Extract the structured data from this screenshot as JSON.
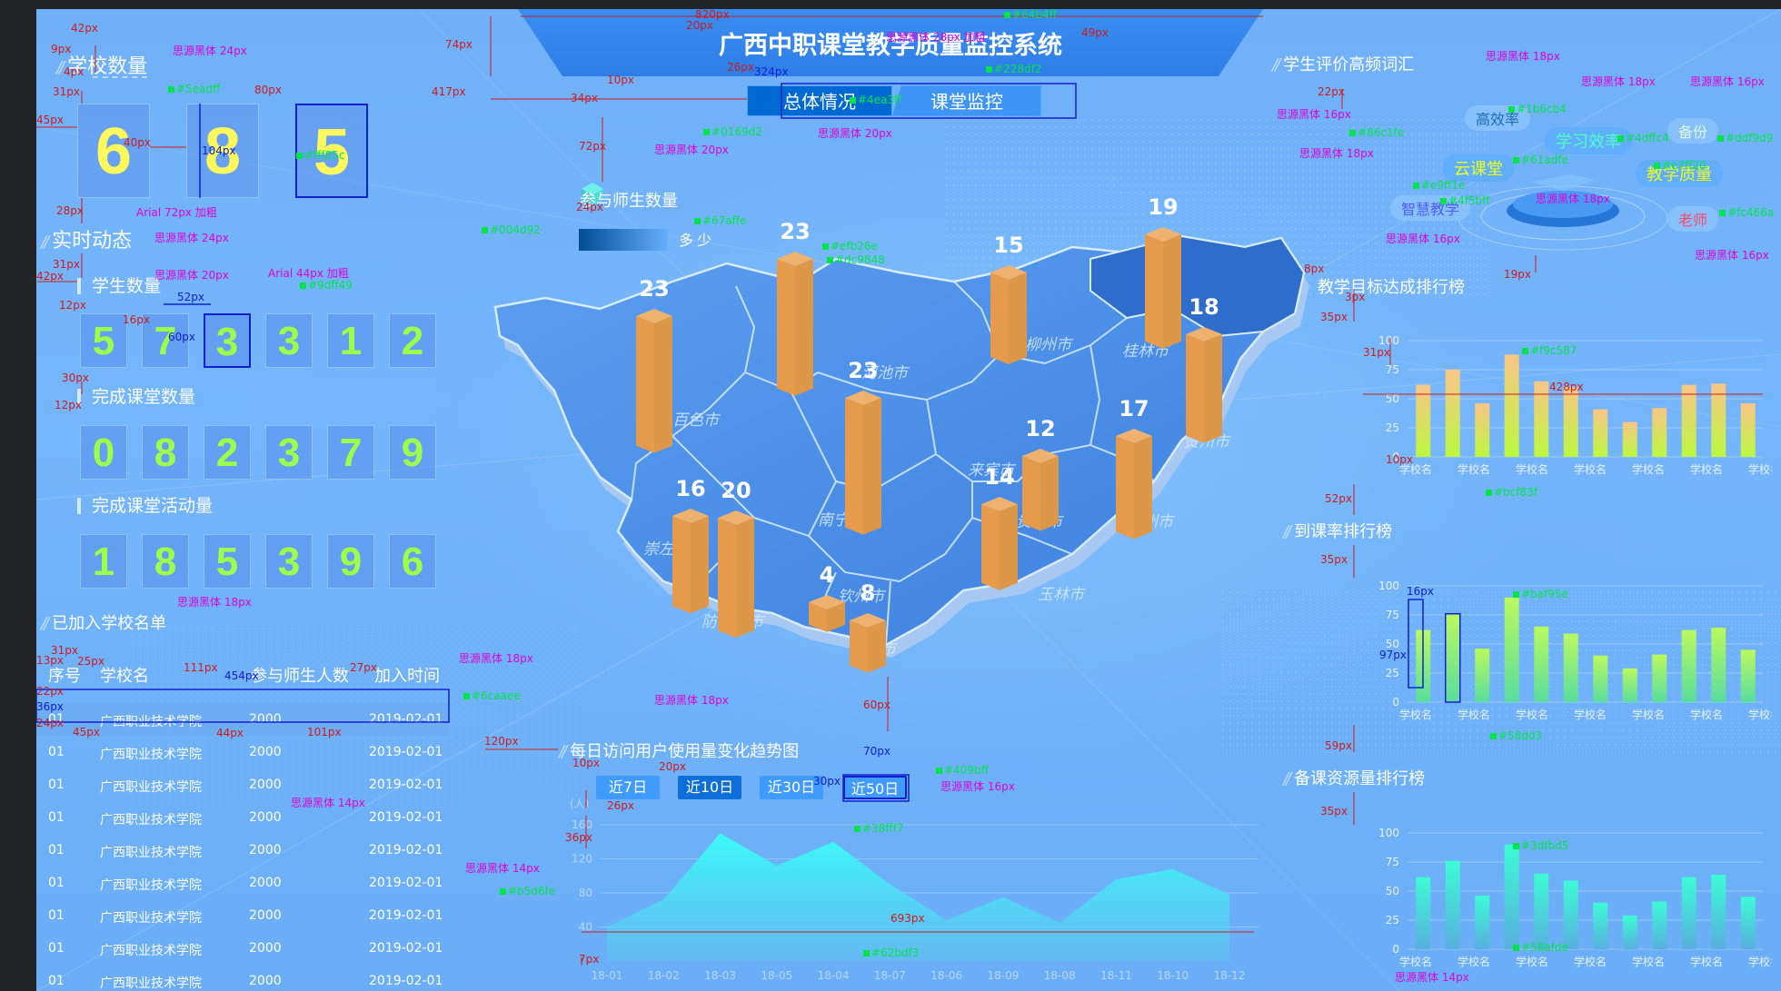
{
  "header": {
    "title": "广西中职课堂教学质量监控系统",
    "tabs": [
      "总体情况",
      "课堂监控"
    ]
  },
  "left": {
    "school_count_title": "学校数量",
    "school_count_digits": [
      "6",
      "8",
      "5"
    ],
    "realtime_title": "实时动态",
    "student_count_label": "学生数量",
    "student_digits": [
      "5",
      "7",
      "3",
      "3",
      "1",
      "2"
    ],
    "classes_label": "完成课堂数量",
    "classes_digits": [
      "0",
      "8",
      "2",
      "3",
      "7",
      "9"
    ],
    "activities_label": "完成课堂活动量",
    "activities_digits": [
      "1",
      "8",
      "5",
      "3",
      "9",
      "6"
    ],
    "school_list_title": "已加入学校名单",
    "table_headers": [
      "序号",
      "学校名",
      "参与师生人数",
      "加入时间"
    ],
    "table_rows": [
      [
        "01",
        "广西职业技术学院",
        "2000",
        "2019-02-01"
      ],
      [
        "01",
        "广西职业技术学院",
        "2000",
        "2019-02-01"
      ],
      [
        "01",
        "广西职业技术学院",
        "2000",
        "2019-02-01"
      ],
      [
        "01",
        "广西职业技术学院",
        "2000",
        "2019-02-01"
      ],
      [
        "01",
        "广西职业技术学院",
        "2000",
        "2019-02-01"
      ],
      [
        "01",
        "广西职业技术学院",
        "2000",
        "2019-02-01"
      ],
      [
        "01",
        "广西职业技术学院",
        "2000",
        "2019-02-01"
      ],
      [
        "01",
        "广西职业技术学院",
        "2000",
        "2019-02-01"
      ],
      [
        "01",
        "广西职业技术学院",
        "2000",
        "2019-02-01"
      ]
    ]
  },
  "map": {
    "legend_title": "参与师生数量",
    "legend_low": "多",
    "legend_high": "少",
    "cities": [
      "百色市",
      "河池市",
      "柳州市",
      "桂林市",
      "贺州市",
      "来宾市",
      "南宁市",
      "崇左市",
      "防城港市",
      "钦州市",
      "北海市",
      "玉林市",
      "贵港市",
      "梧州市"
    ],
    "bars": [
      {
        "value": "23"
      },
      {
        "value": "23"
      },
      {
        "value": "15"
      },
      {
        "value": "19"
      },
      {
        "value": "18"
      },
      {
        "value": "23"
      },
      {
        "value": "12"
      },
      {
        "value": "17"
      },
      {
        "value": "16"
      },
      {
        "value": "20"
      },
      {
        "value": "14"
      },
      {
        "value": "4"
      },
      {
        "value": "8"
      }
    ]
  },
  "trend": {
    "title": "每日访问用户使用量变化趋势图",
    "buttons": [
      "近7日",
      "近10日",
      "近30日",
      "近50日"
    ],
    "unit": "(人)"
  },
  "right": {
    "wordcloud_title": "学生评价高频词汇",
    "words": [
      "高效率",
      "学习效率",
      "备份",
      "云课堂",
      "教学质量",
      "智慧教学",
      "老师"
    ],
    "chart1_title": "教学目标达成排行榜",
    "chart2_title": "到课率排行榜",
    "chart3_title": "备课资源量排行榜"
  },
  "annotations": [
    {
      "t": "820px",
      "c": "red",
      "x": 725,
      "y": -2
    },
    {
      "t": "20px",
      "c": "red",
      "x": 715,
      "y": 12
    },
    {
      "t": "74px",
      "c": "red",
      "x": 450,
      "y": 33
    },
    {
      "t": "思源黑体 28px 加粗",
      "c": "mag",
      "x": 935,
      "y": 25
    },
    {
      "t": "#64b4ff",
      "c": "grn",
      "x": 1065,
      "y": -2
    },
    {
      "t": "49px",
      "c": "red",
      "x": 1150,
      "y": 20
    },
    {
      "t": "26px",
      "c": "red",
      "x": 760,
      "y": 58
    },
    {
      "t": "324px",
      "c": "blu",
      "x": 790,
      "y": 63
    },
    {
      "t": "#228df2",
      "c": "grn",
      "x": 1045,
      "y": 60
    },
    {
      "t": "10px",
      "c": "red",
      "x": 628,
      "y": 72
    },
    {
      "t": "417px",
      "c": "red",
      "x": 435,
      "y": 85
    },
    {
      "t": "34px",
      "c": "red",
      "x": 588,
      "y": 92
    },
    {
      "t": "#4ea3ff",
      "c": "grn",
      "x": 895,
      "y": 94
    },
    {
      "t": "72px",
      "c": "red",
      "x": 597,
      "y": 145
    },
    {
      "t": "#0169d2",
      "c": "grn",
      "x": 734,
      "y": 129
    },
    {
      "t": "思源黑体 20px",
      "c": "mag",
      "x": 860,
      "y": 131
    },
    {
      "t": "思源黑体 20px",
      "c": "mag",
      "x": 680,
      "y": 149
    },
    {
      "t": "42px",
      "c": "red",
      "x": 38,
      "y": 15
    },
    {
      "t": "9px",
      "c": "red",
      "x": 16,
      "y": 38
    },
    {
      "t": "思源黑体 24px",
      "c": "mag",
      "x": 150,
      "y": 40
    },
    {
      "t": "4px",
      "c": "red",
      "x": 30,
      "y": 63
    },
    {
      "t": "#5eadff",
      "c": "grn",
      "x": 145,
      "y": 82
    },
    {
      "t": "31px",
      "c": "red",
      "x": 18,
      "y": 85
    },
    {
      "t": "80px",
      "c": "red",
      "x": 240,
      "y": 83
    },
    {
      "t": "45px",
      "c": "red",
      "x": -4,
      "y": 116
    },
    {
      "t": "40px",
      "c": "red",
      "x": 96,
      "y": 141
    },
    {
      "t": "104px",
      "c": "blu",
      "x": 182,
      "y": 150
    },
    {
      "t": "#fff85c",
      "c": "grn",
      "x": 286,
      "y": 155
    },
    {
      "t": "28px",
      "c": "red",
      "x": 22,
      "y": 216
    },
    {
      "t": "Arial 72px 加粗",
      "c": "mag",
      "x": 110,
      "y": 218
    },
    {
      "t": "思源黑体 24px",
      "c": "mag",
      "x": 130,
      "y": 246
    },
    {
      "t": "31px",
      "c": "red",
      "x": 18,
      "y": 275
    },
    {
      "t": "42px",
      "c": "red",
      "x": -4,
      "y": 288
    },
    {
      "t": "思源黑体 20px",
      "c": "mag",
      "x": 130,
      "y": 287
    },
    {
      "t": "Arial 44px 加粗",
      "c": "mag",
      "x": 255,
      "y": 285
    },
    {
      "t": "#9dff49",
      "c": "grn",
      "x": 290,
      "y": 298
    },
    {
      "t": "52px",
      "c": "blu",
      "x": 155,
      "y": 311
    },
    {
      "t": "12px",
      "c": "red",
      "x": 25,
      "y": 320
    },
    {
      "t": "16px",
      "c": "red",
      "x": 95,
      "y": 336
    },
    {
      "t": "60px",
      "c": "blu",
      "x": 145,
      "y": 355
    },
    {
      "t": "30px",
      "c": "red",
      "x": 28,
      "y": 400
    },
    {
      "t": "12px",
      "c": "red",
      "x": 20,
      "y": 430
    },
    {
      "t": "思源黑体 18px",
      "c": "mag",
      "x": 155,
      "y": 647
    },
    {
      "t": "31px",
      "c": "red",
      "x": 16,
      "y": 700
    },
    {
      "t": "13px",
      "c": "red",
      "x": -7,
      "y": 711
    },
    {
      "t": "25px",
      "c": "red",
      "x": 45,
      "y": 712
    },
    {
      "t": "111px",
      "c": "red",
      "x": 162,
      "y": 719
    },
    {
      "t": "27px",
      "c": "red",
      "x": 345,
      "y": 719
    },
    {
      "t": "思源黑体 18px",
      "c": "mag",
      "x": 465,
      "y": 709
    },
    {
      "t": "454px",
      "c": "blu",
      "x": 207,
      "y": 728
    },
    {
      "t": "22px",
      "c": "red",
      "x": -12,
      "y": 745
    },
    {
      "t": "#6caaee",
      "c": "grn",
      "x": 470,
      "y": 750
    },
    {
      "t": "36px",
      "c": "blu",
      "x": -40,
      "y": 762
    },
    {
      "t": "24px",
      "c": "red",
      "x": -12,
      "y": 780
    },
    {
      "t": "45px",
      "c": "red",
      "x": 40,
      "y": 790
    },
    {
      "t": "44px",
      "c": "red",
      "x": 198,
      "y": 791
    },
    {
      "t": "101px",
      "c": "red",
      "x": 298,
      "y": 790
    },
    {
      "t": "120px",
      "c": "red",
      "x": 493,
      "y": 800
    },
    {
      "t": "思源黑体 14px",
      "c": "mag",
      "x": 280,
      "y": 868
    },
    {
      "t": "#004d92",
      "c": "grn",
      "x": 490,
      "y": 237
    },
    {
      "t": "24px",
      "c": "red",
      "x": 594,
      "y": 212
    },
    {
      "t": "#67affe",
      "c": "grn",
      "x": 724,
      "y": 227
    },
    {
      "t": "#efb26e",
      "c": "grn",
      "x": 865,
      "y": 255
    },
    {
      "t": "#dc9848",
      "c": "grn",
      "x": 870,
      "y": 270
    },
    {
      "t": "思源黑体 18px",
      "c": "mag",
      "x": 680,
      "y": 755
    },
    {
      "t": "60px",
      "c": "red",
      "x": 910,
      "y": 760
    },
    {
      "t": "10px",
      "c": "red",
      "x": 590,
      "y": 824
    },
    {
      "t": "20px",
      "c": "red",
      "x": 685,
      "y": 828
    },
    {
      "t": "70px",
      "c": "blu",
      "x": 910,
      "y": 811
    },
    {
      "t": "#409bff",
      "c": "grn",
      "x": 990,
      "y": 832
    },
    {
      "t": "30px",
      "c": "blu",
      "x": 855,
      "y": 844
    },
    {
      "t": "思源黑体 16px",
      "c": "mag",
      "x": 995,
      "y": 850
    },
    {
      "t": "26px",
      "c": "red",
      "x": 628,
      "y": 871
    },
    {
      "t": "36px",
      "c": "red",
      "x": 582,
      "y": 906
    },
    {
      "t": "#38fff7",
      "c": "grn",
      "x": 900,
      "y": 896
    },
    {
      "t": "思源黑体 14px",
      "c": "mag",
      "x": 472,
      "y": 940
    },
    {
      "t": "#b5d6fe",
      "c": "grn",
      "x": 510,
      "y": 965
    },
    {
      "t": "693px",
      "c": "red",
      "x": 940,
      "y": 995
    },
    {
      "t": "#62bdf3",
      "c": "grn",
      "x": 910,
      "y": 1033
    },
    {
      "t": "7px",
      "c": "red",
      "x": 597,
      "y": 1040
    },
    {
      "t": "思源黑体 18px",
      "c": "mag",
      "x": 1595,
      "y": 46
    },
    {
      "t": "22px",
      "c": "red",
      "x": 1410,
      "y": 85
    },
    {
      "t": "思源黑体 18px",
      "c": "mag",
      "x": 1700,
      "y": 74
    },
    {
      "t": "思源黑体 16px",
      "c": "mag",
      "x": 1820,
      "y": 74
    },
    {
      "t": "思源黑体 16px",
      "c": "mag",
      "x": 1365,
      "y": 110
    },
    {
      "t": "#1b6cb4",
      "c": "grn",
      "x": 1620,
      "y": 104
    },
    {
      "t": "#86c1fe",
      "c": "grn",
      "x": 1445,
      "y": 130
    },
    {
      "t": "#4dffc4",
      "c": "grn",
      "x": 1740,
      "y": 136
    },
    {
      "t": "#ddf9d9",
      "c": "grn",
      "x": 1850,
      "y": 136
    },
    {
      "t": "思源黑体 18px",
      "c": "mag",
      "x": 1390,
      "y": 153
    },
    {
      "t": "#61adfe",
      "c": "grn",
      "x": 1625,
      "y": 160
    },
    {
      "t": "#e7ff20",
      "c": "grn",
      "x": 1780,
      "y": 166
    },
    {
      "t": "#e9ff1e",
      "c": "grn",
      "x": 1515,
      "y": 188
    },
    {
      "t": "#4f5bff",
      "c": "grn",
      "x": 1545,
      "y": 205
    },
    {
      "t": "思源黑体 18px",
      "c": "mag",
      "x": 1650,
      "y": 203
    },
    {
      "t": "#fc466a",
      "c": "grn",
      "x": 1852,
      "y": 218
    },
    {
      "t": "思源黑体 16px",
      "c": "mag",
      "x": 1485,
      "y": 247
    },
    {
      "t": "思源黑体 16px",
      "c": "mag",
      "x": 1825,
      "y": 265
    },
    {
      "t": "8px",
      "c": "red",
      "x": 1395,
      "y": 280
    },
    {
      "t": "19px",
      "c": "red",
      "x": 1615,
      "y": 286
    },
    {
      "t": "3px",
      "c": "red",
      "x": 1440,
      "y": 311
    },
    {
      "t": "35px",
      "c": "red",
      "x": 1413,
      "y": 333
    },
    {
      "t": "31px",
      "c": "red",
      "x": 1460,
      "y": 372
    },
    {
      "t": "#f9c587",
      "c": "grn",
      "x": 1635,
      "y": 370
    },
    {
      "t": "428px",
      "c": "red",
      "x": 1665,
      "y": 410
    },
    {
      "t": "10px",
      "c": "red",
      "x": 1485,
      "y": 490
    },
    {
      "t": "#bcf83f",
      "c": "grn",
      "x": 1595,
      "y": 526
    },
    {
      "t": "52px",
      "c": "red",
      "x": 1418,
      "y": 533
    },
    {
      "t": "35px",
      "c": "red",
      "x": 1413,
      "y": 600
    },
    {
      "t": "16px",
      "c": "blu",
      "x": 1508,
      "y": 635
    },
    {
      "t": "#baf95e",
      "c": "grn",
      "x": 1625,
      "y": 638
    },
    {
      "t": "97px",
      "c": "blu",
      "x": 1478,
      "y": 705
    },
    {
      "t": "#58dd3",
      "c": "grn",
      "x": 1600,
      "y": 794
    },
    {
      "t": "59px",
      "c": "red",
      "x": 1418,
      "y": 805
    },
    {
      "t": "35px",
      "c": "red",
      "x": 1413,
      "y": 877
    },
    {
      "t": "#3dfbd5",
      "c": "grn",
      "x": 1625,
      "y": 915
    },
    {
      "t": "#58afde",
      "c": "grn",
      "x": 1625,
      "y": 1027
    },
    {
      "t": "思源黑体 14px",
      "c": "mag",
      "x": 1495,
      "y": 1060
    }
  ]
}
